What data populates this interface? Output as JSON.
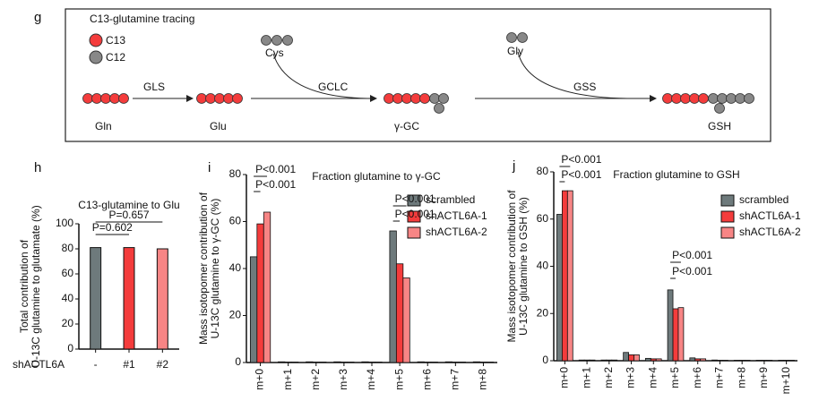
{
  "diagram": {
    "label": "g",
    "title": "C13-glutamine  tracing",
    "legend": [
      "C13",
      "C12"
    ],
    "nodes": [
      "Gln",
      "Glu",
      "γ-GC",
      "GSH"
    ],
    "cofactors": [
      "Cys",
      "Gly"
    ],
    "enzymes": [
      "GLS",
      "GCLC",
      "GSS"
    ]
  },
  "chart_data": [
    {
      "type": "bar",
      "label": "h",
      "title": "C13-glutamine to Glu",
      "ylabel": [
        "Total contribution of",
        "U-13C glutamine to glutamate (%)"
      ],
      "xlabel": "shACTL6A",
      "categories": [
        "-",
        "#1",
        "#2"
      ],
      "values": [
        81,
        81,
        80
      ],
      "colors": [
        "#6e7a7c",
        "#f43c3c",
        "#f78585"
      ],
      "ylim": [
        0,
        100
      ],
      "yticks": [
        0,
        20,
        40,
        60,
        80,
        100
      ],
      "annotations": [
        "P=0.602",
        "P=0.657"
      ]
    },
    {
      "type": "grouped_bar",
      "label": "i",
      "title": "Fraction glutamine to γ-GC",
      "ylabel": [
        "Mass isotopomer contribution of",
        "U-13C glutamine to γ-GC (%)"
      ],
      "categories": [
        "m+0",
        "m+1",
        "m+2",
        "m+3",
        "m+4",
        "m+5",
        "m+6",
        "m+7",
        "m+8"
      ],
      "series": [
        {
          "name": "scrambled",
          "color": "#6e7a7c",
          "values": [
            45,
            0.3,
            0.3,
            0.3,
            0.3,
            56,
            0.3,
            0.3,
            0.3
          ]
        },
        {
          "name": "shACTL6A-1",
          "color": "#f43c3c",
          "values": [
            59,
            0.2,
            0.2,
            0.2,
            0.2,
            42,
            0.2,
            0.2,
            0.2
          ]
        },
        {
          "name": "shACTL6A-2",
          "color": "#f78585",
          "values": [
            64,
            0.2,
            0.2,
            0.2,
            0.2,
            36,
            0.2,
            0.2,
            0.2
          ]
        }
      ],
      "ylim": [
        0,
        80
      ],
      "yticks": [
        0,
        20,
        40,
        60,
        80
      ],
      "annotations": [
        "P<0.001",
        "P<0.001",
        "P<0.001",
        "P<0.001"
      ]
    },
    {
      "type": "grouped_bar",
      "label": "j",
      "title": "Fraction glutamine to GSH",
      "ylabel": [
        "Mass isotopomer contribution of",
        "U-13C glutamine to GSH (%)"
      ],
      "categories": [
        "m+0",
        "m+1",
        "m+2",
        "m+3",
        "m+4",
        "m+5",
        "m+6",
        "m+7",
        "m+8",
        "m+9",
        "m+10"
      ],
      "series": [
        {
          "name": "scrambled",
          "color": "#6e7a7c",
          "values": [
            62,
            0.3,
            0.3,
            3.5,
            1,
            30,
            1.2,
            0.3,
            0.2,
            0.2,
            0.2
          ]
        },
        {
          "name": "shACTL6A-1",
          "color": "#f43c3c",
          "values": [
            72,
            0.3,
            0.3,
            2.5,
            0.8,
            22,
            0.8,
            0.2,
            0.2,
            0.2,
            0.2
          ]
        },
        {
          "name": "shACTL6A-2",
          "color": "#f78585",
          "values": [
            72,
            0.3,
            0.3,
            2.5,
            0.8,
            22.5,
            0.8,
            0.2,
            0.2,
            0.2,
            0.2
          ]
        }
      ],
      "ylim": [
        0,
        80
      ],
      "yticks": [
        0,
        20,
        40,
        60,
        80
      ],
      "annotations": [
        "P<0.001",
        "P<0.001",
        "P<0.001",
        "P<0.001"
      ]
    }
  ]
}
